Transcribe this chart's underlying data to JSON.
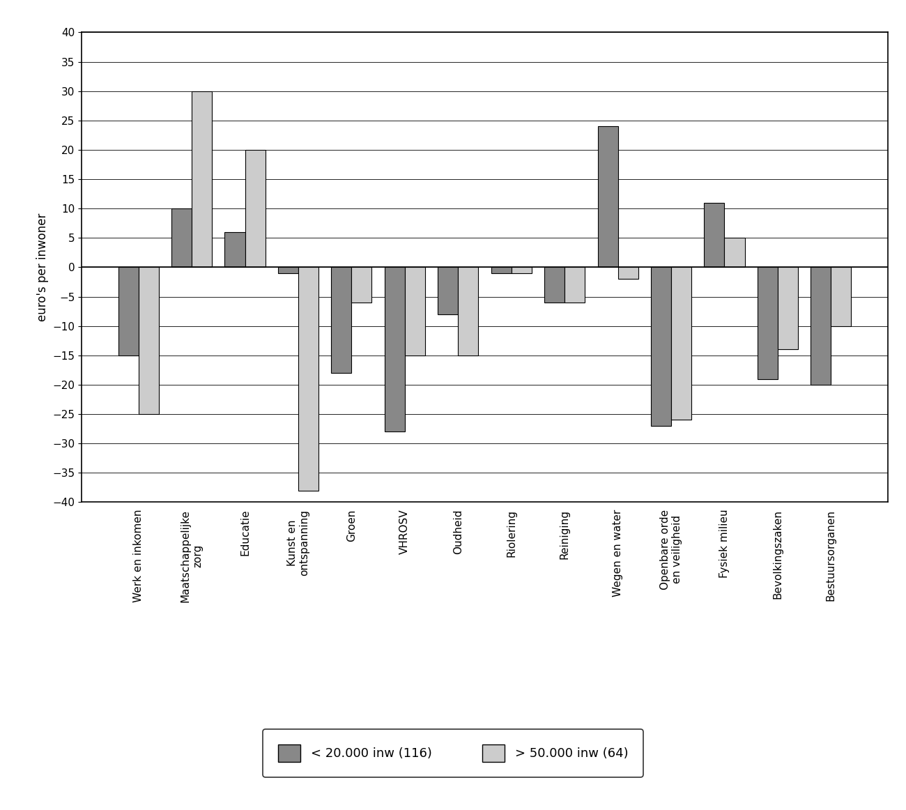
{
  "categories": [
    "Werk en inkomen",
    "Maatschappelijke\nzorg",
    "Educatie",
    "Kunst en\nontspanning",
    "Groen",
    "VHROSV",
    "Oudheid",
    "Riolering",
    "Reiniging",
    "Wegen en water",
    "Openbare orde\nen veiligheid",
    "Fysiek milieu",
    "Bevolkingszaken",
    "Bestuursorganen"
  ],
  "small_municipalities": [
    -15,
    10,
    6,
    -1,
    -18,
    -28,
    -8,
    -1,
    -6,
    24,
    -27,
    11,
    -19,
    -20
  ],
  "large_municipalities": [
    -25,
    30,
    20,
    -38,
    -6,
    -15,
    -15,
    -1,
    -6,
    -2,
    -26,
    5,
    -14,
    -10
  ],
  "color_small": "#888888",
  "color_large": "#cccccc",
  "ylabel": "euro's per inwoner",
  "ylim": [
    -40,
    40
  ],
  "yticks": [
    -40,
    -35,
    -30,
    -25,
    -20,
    -15,
    -10,
    -5,
    0,
    5,
    10,
    15,
    20,
    25,
    30,
    35,
    40
  ],
  "legend_small": "< 20.000 inw (116)",
  "legend_large": "> 50.000 inw (64)",
  "background_color": "#ffffff",
  "bar_width": 0.38,
  "fontsize_ticks": 11,
  "fontsize_ylabel": 12,
  "fontsize_legend": 13
}
